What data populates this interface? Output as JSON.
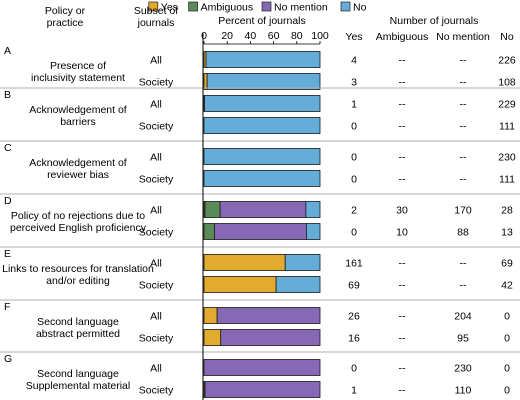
{
  "chart_data": {
    "type": "bar",
    "stacked": true,
    "xlabel": "Percent of journals",
    "xlim": [
      0,
      100
    ],
    "xticks": [
      0,
      20,
      40,
      60,
      80,
      100
    ],
    "legend": {
      "placement": "top-center",
      "entries": [
        {
          "name": "Yes",
          "color": "#e2aa2f"
        },
        {
          "name": "Ambiguous",
          "color": "#5b8a59"
        },
        {
          "name": "No mention",
          "color": "#8668b4"
        },
        {
          "name": "No",
          "color": "#64add9"
        }
      ]
    },
    "column_headers": {
      "policy": "Policy or practice",
      "subset": "Subset of journals",
      "counts": "Number of journals",
      "yes": "Yes",
      "ambiguous": "Ambiguous",
      "no_mention": "No mention",
      "no": "No"
    },
    "groups": [
      {
        "letter": "A",
        "policy": "Presence of inclusivity statement",
        "rows": [
          {
            "subset": "All",
            "counts": [
              "4",
              "--",
              "--",
              "226"
            ],
            "values": [
              4,
              0,
              0,
              226
            ]
          },
          {
            "subset": "Society",
            "counts": [
              "3",
              "--",
              "--",
              "108"
            ],
            "values": [
              3,
              0,
              0,
              108
            ]
          }
        ]
      },
      {
        "letter": "B",
        "policy": "Acknowledgement of barriers",
        "rows": [
          {
            "subset": "All",
            "counts": [
              "1",
              "--",
              "--",
              "229"
            ],
            "values": [
              1,
              0,
              0,
              229
            ]
          },
          {
            "subset": "Society",
            "counts": [
              "0",
              "--",
              "--",
              "111"
            ],
            "values": [
              0,
              0,
              0,
              111
            ]
          }
        ]
      },
      {
        "letter": "C",
        "policy": "Acknowledgement of reviewer bias",
        "rows": [
          {
            "subset": "All",
            "counts": [
              "0",
              "--",
              "--",
              "230"
            ],
            "values": [
              0,
              0,
              0,
              230
            ]
          },
          {
            "subset": "Society",
            "counts": [
              "0",
              "--",
              "--",
              "111"
            ],
            "values": [
              0,
              0,
              0,
              111
            ]
          }
        ]
      },
      {
        "letter": "D",
        "policy": "Policy of no rejections due to perceived English proficiency",
        "rows": [
          {
            "subset": "All",
            "counts": [
              "2",
              "30",
              "170",
              "28"
            ],
            "values": [
              2,
              30,
              170,
              28
            ]
          },
          {
            "subset": "Society",
            "counts": [
              "0",
              "10",
              "88",
              "13"
            ],
            "values": [
              0,
              10,
              88,
              13
            ]
          }
        ]
      },
      {
        "letter": "E",
        "policy": "Links to resources for translation and/or editing",
        "rows": [
          {
            "subset": "All",
            "counts": [
              "161",
              "--",
              "--",
              "69"
            ],
            "values": [
              161,
              0,
              0,
              69
            ]
          },
          {
            "subset": "Society",
            "counts": [
              "69",
              "--",
              "--",
              "42"
            ],
            "values": [
              69,
              0,
              0,
              42
            ]
          }
        ]
      },
      {
        "letter": "F",
        "policy": "Second language abstract permitted",
        "rows": [
          {
            "subset": "All",
            "counts": [
              "26",
              "--",
              "204",
              "0"
            ],
            "values": [
              26,
              0,
              204,
              0
            ]
          },
          {
            "subset": "Society",
            "counts": [
              "16",
              "--",
              "95",
              "0"
            ],
            "values": [
              16,
              0,
              95,
              0
            ]
          }
        ]
      },
      {
        "letter": "G",
        "policy": "Second language Supplemental material",
        "rows": [
          {
            "subset": "All",
            "counts": [
              "0",
              "--",
              "230",
              "0"
            ],
            "values": [
              0,
              0,
              230,
              0
            ]
          },
          {
            "subset": "Society",
            "counts": [
              "1",
              "--",
              "110",
              "0"
            ],
            "values": [
              1,
              0,
              110,
              0
            ]
          }
        ]
      }
    ]
  }
}
